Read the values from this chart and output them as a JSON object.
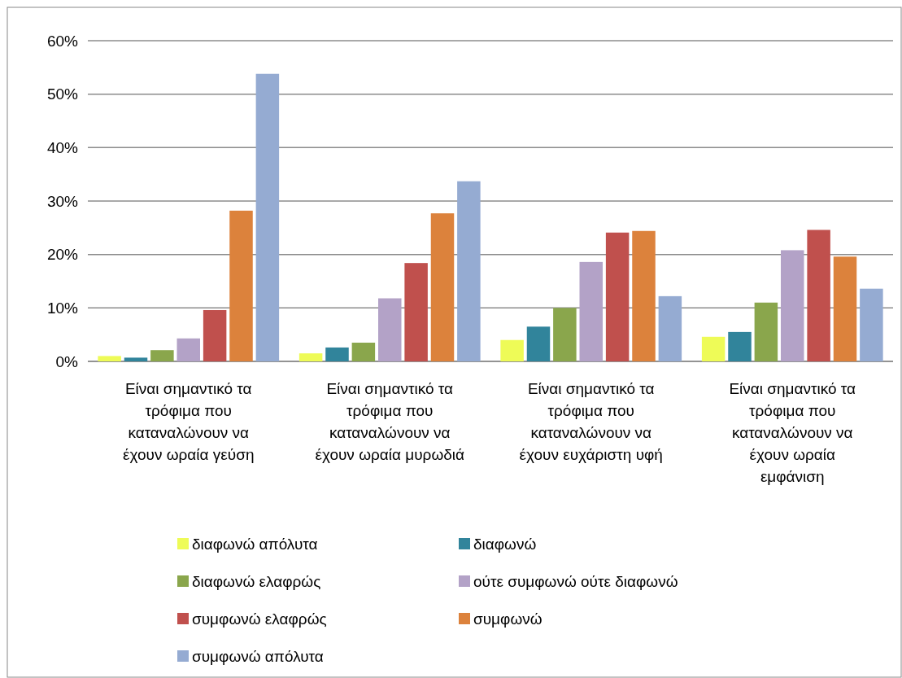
{
  "chart_data": {
    "type": "bar",
    "categories": [
      "Είναι σημαντικό τα τρόφιμα που καταναλώνουν να έχουν ωραία γεύση",
      "Είναι σημαντικό τα τρόφιμα που καταναλώνουν να έχουν ωραία μυρωδιά",
      "Είναι σημαντικό τα τρόφιμα που καταναλώνουν να έχουν ευχάριστη υφή",
      "Είναι σημαντικό τα τρόφιμα που καταναλώνουν να έχουν ωραία εμφάνιση"
    ],
    "series": [
      {
        "name": "διαφωνώ απόλυτα",
        "color": "#eefb57",
        "values": [
          1.0,
          1.5,
          4.0,
          4.6
        ]
      },
      {
        "name": "διαφωνώ",
        "color": "#31849b",
        "values": [
          0.7,
          2.6,
          6.5,
          5.5
        ]
      },
      {
        "name": "διαφωνώ ελαφρώς",
        "color": "#8aa64c",
        "values": [
          2.1,
          3.5,
          10.0,
          11.0
        ]
      },
      {
        "name": "ούτε συμφωνώ ούτε διαφωνώ",
        "color": "#b3a2c7",
        "values": [
          4.3,
          11.8,
          18.6,
          20.8
        ]
      },
      {
        "name": "συμφωνώ ελαφρώς",
        "color": "#c0504d",
        "values": [
          9.6,
          18.4,
          24.1,
          24.6
        ]
      },
      {
        "name": "συμφωνώ",
        "color": "#dc823c",
        "values": [
          28.2,
          27.7,
          24.4,
          19.6
        ]
      },
      {
        "name": "συμφωνώ απόλυτα",
        "color": "#95abd2",
        "values": [
          53.8,
          33.7,
          12.2,
          13.6
        ]
      }
    ],
    "ylim": [
      0,
      60
    ],
    "yticks": [
      {
        "value": 0,
        "label": "0%"
      },
      {
        "value": 10,
        "label": "10%"
      },
      {
        "value": 20,
        "label": "20%"
      },
      {
        "value": 30,
        "label": "30%"
      },
      {
        "value": 40,
        "label": "40%"
      },
      {
        "value": 50,
        "label": "50%"
      },
      {
        "value": 60,
        "label": "60%"
      }
    ],
    "grid": "y",
    "legend": "bottom"
  }
}
